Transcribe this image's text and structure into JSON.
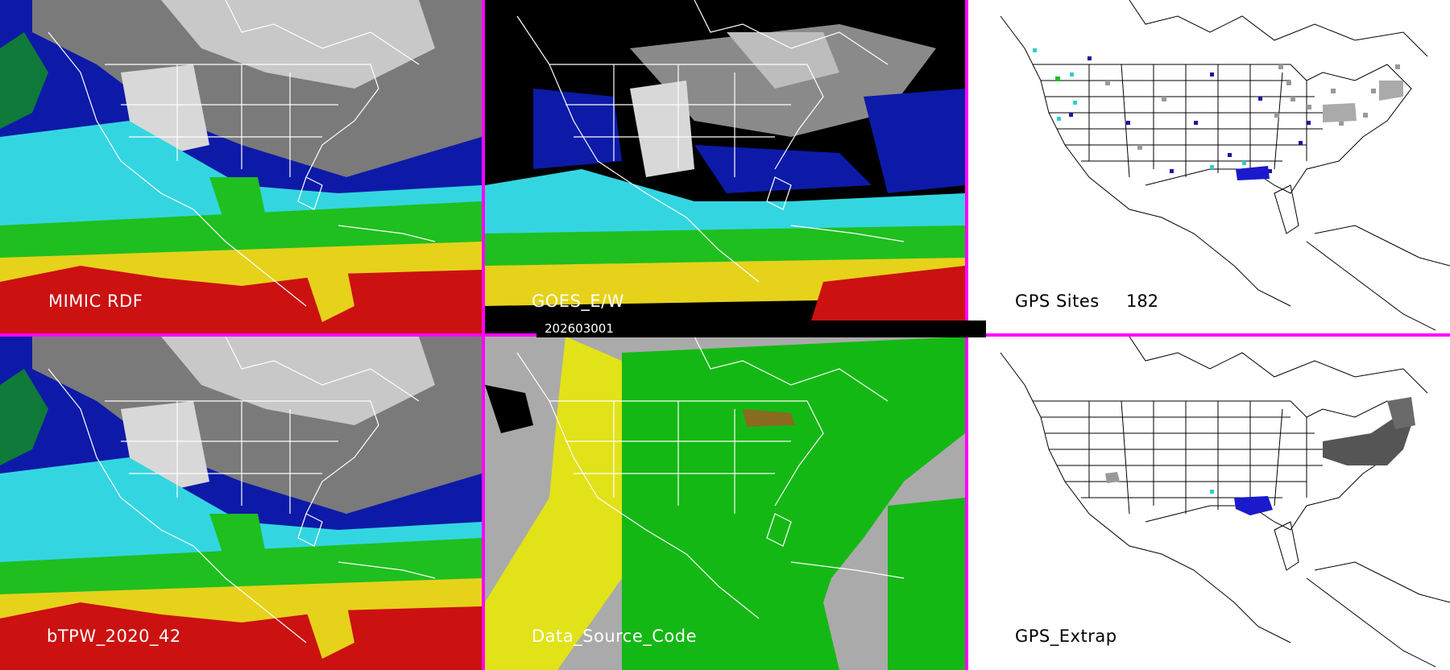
{
  "panels": [
    {
      "label": "MIMIC RDF"
    },
    {
      "label": "GOES_E/W"
    },
    {
      "label": "GPS Sites",
      "count": "182"
    },
    {
      "label": "bTPW_2020_42"
    },
    {
      "label": "Data_Source_Code"
    },
    {
      "label": "GPS_Extrap"
    }
  ],
  "timestamp": "202603001",
  "colors": {
    "separator": "#ff00ff",
    "tpw_palette": [
      "#cc1111",
      "#e6d21a",
      "#1fbf1f",
      "#33d6e0",
      "#0d1aa8",
      "#7a7a7a",
      "#d8d8d8"
    ],
    "source_palette": [
      "#aaaaaa",
      "#e2e219",
      "#14b814",
      "#8a6b1f"
    ]
  }
}
